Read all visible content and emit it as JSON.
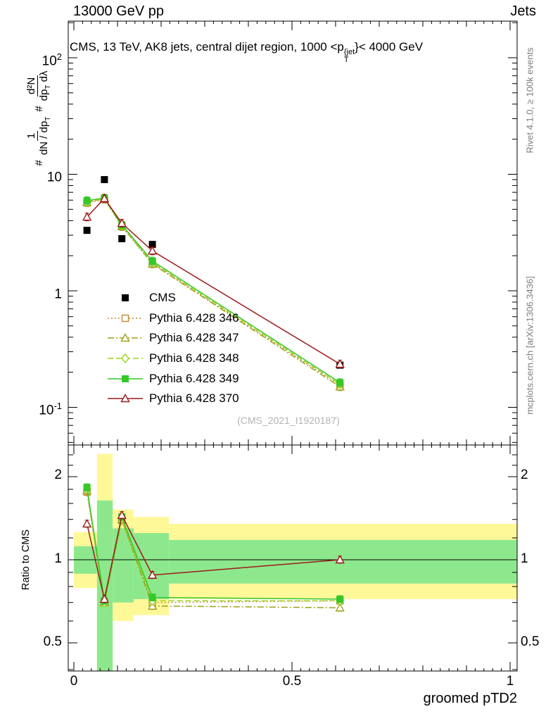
{
  "header": {
    "left": "13000 GeV pp",
    "right": "Jets"
  },
  "title": {
    "prefix": "CMS, 13 TeV, AK8 jets, central dijet region, 1000 <p",
    "sup": "{jet",
    "sub": "T",
    "suffix": "}< 4000 GeV"
  },
  "y_axis_label": {
    "hash1": "#",
    "frac1_num": "1",
    "frac1_den": "dN / dp",
    "frac1_den_sub": "T",
    "hash2": "#",
    "frac2_num": "d²N",
    "frac2_den": "dp",
    "frac2_den_sub": "T",
    "frac2_den_tail": " dλ"
  },
  "ratio_axis_label": "Ratio to CMS",
  "x_axis_title": "groomed pTD2",
  "watermark": "(CMS_2021_I1920187)",
  "credits": {
    "rivet": "Rivet 4.1.0, ≥ 100k events",
    "mcplots": "mcplots.cern.ch [arXiv:1306.3436]"
  },
  "ticks": {
    "main_y": [
      {
        "base": "10",
        "sup": "2"
      },
      {
        "base": "10",
        "sup": ""
      },
      {
        "base": "1",
        "sup": ""
      },
      {
        "base": "10",
        "sup": "-1"
      }
    ],
    "ratio_y": [
      "2",
      "1",
      "0.5"
    ],
    "x": [
      "0",
      "0.5",
      "1"
    ]
  },
  "chart_data": {
    "type": "line",
    "title": "CMS, 13 TeV, AK8 jets, central dijet region, 1000 < pT^jet < 4000 GeV",
    "xlabel": "groomed pTD2",
    "ylabel": "1/(dN/dpT) d²N/(dpT dλ)",
    "x": [
      0.03,
      0.07,
      0.11,
      0.18,
      0.61
    ],
    "xlim": [
      0,
      1
    ],
    "y_scale": "log",
    "ylim_main": [
      0.05,
      200
    ],
    "ratio_scale": "log2",
    "ylim_ratio": [
      0.4,
      2.6
    ],
    "point_error_rel": 0.08,
    "ratio_error_rel": 0.03,
    "reference_line": 1.0,
    "series": [
      {
        "name": "CMS",
        "color": "#000000",
        "marker": "filled-square",
        "line": "none",
        "values": [
          3.3,
          9.0,
          2.8,
          2.5,
          0.23
        ]
      },
      {
        "name": "Pythia 6.428 346",
        "color": "#c28a2e",
        "marker": "open-square",
        "line": "dotted",
        "values": [
          5.7,
          6.1,
          3.55,
          1.72,
          0.155
        ],
        "ratio": [
          1.76,
          0.7,
          1.39,
          0.7,
          0.71
        ]
      },
      {
        "name": "Pythia 6.428 347",
        "color": "#9fa01c",
        "marker": "open-triangle",
        "line": "dashdot",
        "values": [
          5.75,
          6.15,
          3.6,
          1.7,
          0.15
        ],
        "ratio": [
          1.78,
          0.7,
          1.4,
          0.68,
          0.67
        ]
      },
      {
        "name": "Pythia 6.428 348",
        "color": "#9fd41f",
        "marker": "open-diamond",
        "line": "dashed",
        "values": [
          5.8,
          6.2,
          3.62,
          1.75,
          0.158
        ],
        "ratio": [
          1.8,
          0.7,
          1.41,
          0.71,
          0.71
        ]
      },
      {
        "name": "Pythia 6.428 349",
        "color": "#35c827",
        "marker": "filled-square",
        "line": "solid",
        "values": [
          5.95,
          6.25,
          3.68,
          1.8,
          0.163
        ],
        "ratio": [
          1.83,
          0.71,
          1.43,
          0.73,
          0.72
        ]
      },
      {
        "name": "Pythia 6.428 370",
        "color": "#9c1a1a",
        "marker": "open-triangle",
        "line": "solid",
        "values": [
          4.3,
          6.2,
          3.8,
          2.2,
          0.235
        ],
        "ratio": [
          1.35,
          0.72,
          1.45,
          0.88,
          1.0
        ]
      }
    ],
    "ratio_bands": {
      "yellow": "#fff899",
      "green": "#8de88d",
      "bins": [
        {
          "x0": 0.0,
          "x1": 0.053,
          "yellow": [
            0.79,
            1.26
          ],
          "green": [
            0.89,
            1.12
          ]
        },
        {
          "x0": 0.053,
          "x1": 0.089,
          "yellow": [
            0.38,
            2.42
          ],
          "green": [
            0.38,
            1.64
          ]
        },
        {
          "x0": 0.089,
          "x1": 0.137,
          "yellow": [
            0.6,
            1.52
          ],
          "green": [
            0.7,
            1.3
          ]
        },
        {
          "x0": 0.137,
          "x1": 0.218,
          "yellow": [
            0.63,
            1.43
          ],
          "green": [
            0.72,
            1.25
          ]
        },
        {
          "x0": 0.218,
          "x1": 1.02,
          "yellow": [
            0.72,
            1.35
          ],
          "green": [
            0.82,
            1.18
          ]
        }
      ]
    }
  }
}
